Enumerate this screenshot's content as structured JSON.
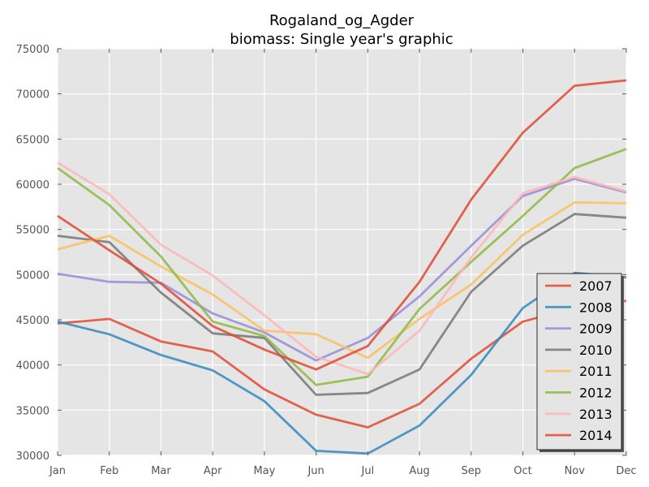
{
  "chart_data": {
    "type": "line",
    "title": "Rogaland_og_Agder",
    "subtitle": "biomass: Single year's graphic",
    "xlabel": "",
    "ylabel": "",
    "categories": [
      "Jan",
      "Feb",
      "Mar",
      "Apr",
      "May",
      "Jun",
      "Jul",
      "Aug",
      "Sep",
      "Oct",
      "Nov",
      "Dec"
    ],
    "ylim": [
      30000,
      75000
    ],
    "yticks": [
      30000,
      35000,
      40000,
      45000,
      50000,
      55000,
      60000,
      65000,
      70000,
      75000
    ],
    "grid": true,
    "legend_position": "lower-right",
    "series": [
      {
        "name": "2007",
        "color": "#E24A33",
        "values": [
          44600,
          45100,
          42600,
          41500,
          37300,
          34500,
          33100,
          35700,
          40700,
          44800,
          46300,
          47100
        ]
      },
      {
        "name": "2008",
        "color": "#348ABD",
        "values": [
          44800,
          43400,
          41100,
          39400,
          36000,
          30500,
          30200,
          33300,
          38900,
          46300,
          50200,
          49700
        ]
      },
      {
        "name": "2009",
        "color": "#988ED5",
        "values": [
          50100,
          49200,
          49100,
          45700,
          43600,
          40500,
          43000,
          47600,
          53200,
          58700,
          60600,
          59100
        ]
      },
      {
        "name": "2010",
        "color": "#777777",
        "values": [
          54300,
          53600,
          48000,
          43500,
          43000,
          36700,
          36900,
          39500,
          48100,
          53200,
          56700,
          56300
        ]
      },
      {
        "name": "2011",
        "color": "#FBC15E",
        "values": [
          52800,
          54300,
          50900,
          47800,
          43800,
          43400,
          40800,
          45100,
          48900,
          54400,
          58000,
          57900
        ]
      },
      {
        "name": "2012",
        "color": "#8EBA42",
        "values": [
          61800,
          57700,
          52000,
          44800,
          43200,
          37800,
          38700,
          46200,
          51400,
          56500,
          61800,
          63900
        ]
      },
      {
        "name": "2013",
        "color": "#FFB5B8",
        "values": [
          62400,
          58900,
          53300,
          49900,
          45500,
          40900,
          39000,
          43800,
          51900,
          59000,
          60800,
          59200
        ]
      },
      {
        "name": "2014",
        "color": "#E24A33",
        "values": [
          56500,
          52700,
          49000,
          44300,
          41700,
          39500,
          42100,
          49200,
          58300,
          65700,
          70900,
          71500
        ]
      }
    ]
  }
}
